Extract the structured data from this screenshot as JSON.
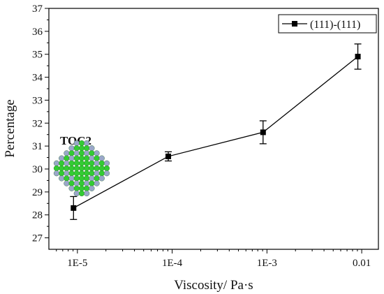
{
  "chart_data": {
    "type": "line",
    "title": "",
    "xlabel": "Viscosity/ Pa·s",
    "ylabel": "Percentage",
    "xscale": "log",
    "xlim": [
      5e-06,
      0.015
    ],
    "ylim": [
      26.5,
      37
    ],
    "x_ticks": [
      1e-05,
      0.0001,
      0.001,
      0.01
    ],
    "x_tick_labels": [
      "1E-5",
      "1E-4",
      "1E-3",
      "0.01"
    ],
    "y_ticks": [
      27,
      28,
      29,
      30,
      31,
      32,
      33,
      34,
      35,
      36,
      37
    ],
    "y_tick_labels": [
      "27",
      "28",
      "29",
      "30",
      "31",
      "32",
      "33",
      "34",
      "35",
      "36",
      "37"
    ],
    "grid": false,
    "legend": {
      "position": "top-right"
    },
    "series": [
      {
        "name": "(111)-(111)",
        "marker": "square",
        "color": "#000000",
        "x": [
          9.1e-06,
          9.1e-05,
          0.00091,
          0.0091
        ],
        "y": [
          28.3,
          30.55,
          31.6,
          34.9
        ],
        "error": [
          0.5,
          0.2,
          0.5,
          0.55
        ]
      }
    ],
    "annotation": {
      "label": "TOC2",
      "image": "nanoparticle-cluster-icon",
      "colors": {
        "outer": "#33cc33",
        "inner": "#9aa7c9"
      }
    }
  }
}
